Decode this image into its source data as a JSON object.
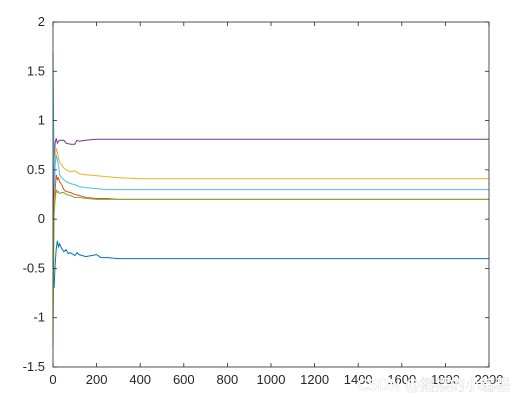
{
  "watermark": "CSDN @摇摆的小编程",
  "chart_data": {
    "type": "line",
    "title": "",
    "xlabel": "",
    "ylabel": "",
    "xlim": [
      0,
      2000
    ],
    "ylim": [
      -1.5,
      2
    ],
    "xticks": [
      0,
      200,
      400,
      600,
      800,
      1000,
      1200,
      1400,
      1600,
      1800,
      2000
    ],
    "yticks": [
      -1.5,
      -1,
      -0.5,
      0,
      0.5,
      1,
      1.5,
      2
    ],
    "xtick_labels": [
      "0",
      "200",
      "400",
      "600",
      "800",
      "1000",
      "1200",
      "1400",
      "1600",
      "1800",
      "2000"
    ],
    "ytick_labels": [
      "-1.5",
      "-1",
      "-0.5",
      "0",
      "0.5",
      "1",
      "1.5",
      "2"
    ],
    "grid": false,
    "legend": "none",
    "series": [
      {
        "color": "#0072BD",
        "x": [
          0,
          5,
          10,
          15,
          20,
          25,
          30,
          40,
          50,
          60,
          70,
          80,
          100,
          110,
          120,
          150,
          200,
          220,
          250,
          300,
          400,
          2000
        ],
        "y": [
          -0.6,
          -0.7,
          -0.45,
          -0.3,
          -0.22,
          -0.28,
          -0.25,
          -0.3,
          -0.33,
          -0.31,
          -0.35,
          -0.34,
          -0.37,
          -0.34,
          -0.36,
          -0.38,
          -0.36,
          -0.39,
          -0.39,
          -0.4,
          -0.4,
          -0.4
        ]
      },
      {
        "color": "#D95319",
        "x": [
          0,
          5,
          10,
          15,
          20,
          25,
          30,
          40,
          50,
          60,
          80,
          100,
          120,
          150,
          200,
          250,
          300,
          400,
          2000
        ],
        "y": [
          -0.5,
          0.1,
          0.3,
          0.45,
          0.4,
          0.42,
          0.38,
          0.35,
          0.3,
          0.28,
          0.27,
          0.25,
          0.24,
          0.22,
          0.21,
          0.21,
          0.2,
          0.2,
          0.2
        ]
      },
      {
        "color": "#EDB120",
        "x": [
          0,
          5,
          10,
          15,
          20,
          25,
          30,
          40,
          50,
          60,
          80,
          100,
          120,
          150,
          200,
          250,
          300,
          400,
          2000
        ],
        "y": [
          -1.3,
          0.3,
          0.6,
          0.72,
          0.68,
          0.62,
          0.58,
          0.55,
          0.52,
          0.5,
          0.48,
          0.49,
          0.46,
          0.45,
          0.44,
          0.43,
          0.42,
          0.41,
          0.41
        ]
      },
      {
        "color": "#7E2F8E",
        "x": [
          0,
          5,
          10,
          15,
          20,
          25,
          30,
          50,
          60,
          80,
          100,
          110,
          120,
          150,
          200,
          300,
          400,
          2000
        ],
        "y": [
          0.0,
          0.6,
          0.78,
          0.82,
          0.77,
          0.79,
          0.8,
          0.8,
          0.77,
          0.76,
          0.76,
          0.8,
          0.79,
          0.8,
          0.81,
          0.81,
          0.81,
          0.81
        ]
      },
      {
        "color": "#77AC30",
        "x": [
          0,
          5,
          10,
          15,
          20,
          25,
          30,
          40,
          50,
          60,
          80,
          100,
          120,
          150,
          200,
          250,
          300,
          400,
          2000
        ],
        "y": [
          -1.0,
          0.05,
          0.2,
          0.3,
          0.27,
          0.28,
          0.26,
          0.27,
          0.27,
          0.25,
          0.24,
          0.22,
          0.22,
          0.21,
          0.2,
          0.2,
          0.2,
          0.2,
          0.2
        ]
      },
      {
        "color": "#4DBEEE",
        "x": [
          0,
          3,
          6,
          10,
          15,
          20,
          25,
          30,
          40,
          50,
          60,
          80,
          100,
          120,
          150,
          200,
          250,
          300,
          400,
          2000
        ],
        "y": [
          1.7,
          1.0,
          0.3,
          0.55,
          0.65,
          0.6,
          0.55,
          0.45,
          0.42,
          0.4,
          0.38,
          0.36,
          0.35,
          0.33,
          0.32,
          0.31,
          0.3,
          0.3,
          0.3,
          0.3
        ]
      }
    ]
  }
}
